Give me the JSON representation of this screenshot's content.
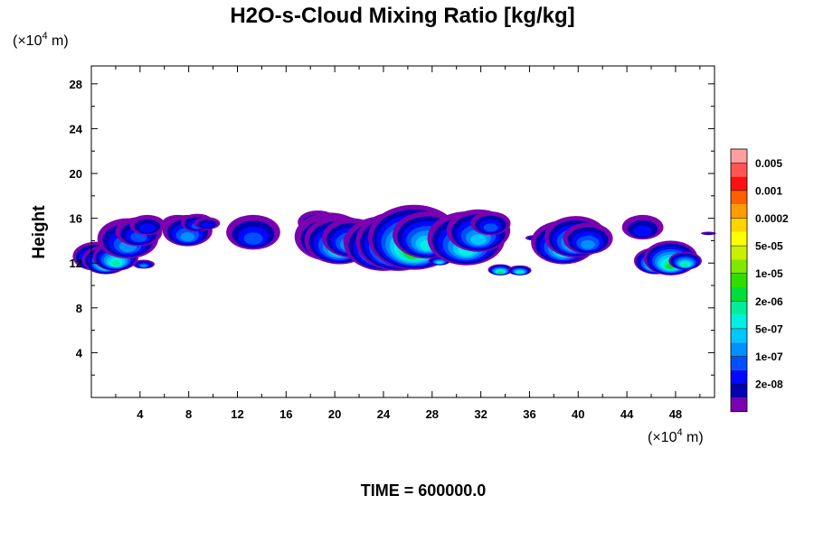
{
  "chart_data": {
    "type": "heatmap",
    "title": "H2O-s-Cloud Mixing Ratio [kg/kg]",
    "xlabel": "",
    "ylabel": "Height",
    "x_unit_text": "(×10⁴ m)",
    "y_unit_text": "(×10⁴ m)",
    "x_unit": {
      "prefix": "(×10",
      "exp": "4",
      "suffix": " m)"
    },
    "y_unit": {
      "prefix": "(×10",
      "exp": "4",
      "suffix": " m)"
    },
    "xlim": [
      0,
      51.2
    ],
    "ylim": [
      0,
      29.6
    ],
    "x_ticks": [
      4,
      8,
      12,
      16,
      20,
      24,
      28,
      32,
      36,
      40,
      44,
      48
    ],
    "y_ticks": [
      4,
      8,
      12,
      16,
      20,
      24,
      28
    ],
    "x_tick_labels": [
      "4",
      "8",
      "12",
      "16",
      "20",
      "24",
      "28",
      "32",
      "36",
      "40",
      "44",
      "48"
    ],
    "y_tick_labels": [
      "4",
      "8",
      "12",
      "16",
      "20",
      "24",
      "28"
    ],
    "time_label": "TIME = 600000.0",
    "colorbar": {
      "labels": [
        "0.005",
        "0.001",
        "0.0002",
        "5e-05",
        "1e-05",
        "2e-06",
        "5e-07",
        "1e-07",
        "2e-08"
      ],
      "colors_top_to_bottom": [
        "#ff9fa0",
        "#ff5555",
        "#ff1111",
        "#ff5f00",
        "#ff9c00",
        "#ffd400",
        "#ffff00",
        "#c8f000",
        "#7fe800",
        "#2fde00",
        "#00de3c",
        "#00ee9a",
        "#00f0e4",
        "#00c8ff",
        "#0090ff",
        "#0050ff",
        "#0008ff",
        "#0000b0",
        "#7a00b0"
      ]
    },
    "clouds": [
      {
        "x": 0.4,
        "base": 11.3,
        "top": 13.9,
        "max_level": 6
      },
      {
        "x": 1.2,
        "base": 11.0,
        "top": 13.6,
        "max_level": 7
      },
      {
        "x": 2.0,
        "base": 11.3,
        "top": 13.8,
        "max_level": 7
      },
      {
        "x": 3.0,
        "base": 12.4,
        "top": 16.0,
        "max_level": 4
      },
      {
        "x": 3.9,
        "base": 13.5,
        "top": 16.1,
        "max_level": 3
      },
      {
        "x": 4.6,
        "base": 14.5,
        "top": 16.3,
        "max_level": 2
      },
      {
        "x": 4.3,
        "base": 11.5,
        "top": 12.3,
        "max_level": 4
      },
      {
        "x": 7.1,
        "base": 14.8,
        "top": 16.3,
        "max_level": 2
      },
      {
        "x": 7.9,
        "base": 13.5,
        "top": 16.3,
        "max_level": 4
      },
      {
        "x": 8.7,
        "base": 14.8,
        "top": 16.4,
        "max_level": 3
      },
      {
        "x": 9.5,
        "base": 15.0,
        "top": 16.1,
        "max_level": 2
      },
      {
        "x": 13.3,
        "base": 13.2,
        "top": 16.3,
        "max_level": 3
      },
      {
        "x": 18.6,
        "base": 14.6,
        "top": 16.7,
        "max_level": 3
      },
      {
        "x": 19.6,
        "base": 12.2,
        "top": 16.5,
        "max_level": 4
      },
      {
        "x": 20.4,
        "base": 11.9,
        "top": 16.2,
        "max_level": 6
      },
      {
        "x": 21.4,
        "base": 12.5,
        "top": 16.0,
        "max_level": 5
      },
      {
        "x": 22.8,
        "base": 12.5,
        "top": 15.4,
        "max_level": 4
      },
      {
        "x": 24.0,
        "base": 11.3,
        "top": 16.2,
        "max_level": 7
      },
      {
        "x": 25.2,
        "base": 11.3,
        "top": 16.6,
        "max_level": 8
      },
      {
        "x": 26.5,
        "base": 11.4,
        "top": 17.2,
        "max_level": 9
      },
      {
        "x": 27.6,
        "base": 12.4,
        "top": 16.6,
        "max_level": 6
      },
      {
        "x": 28.6,
        "base": 11.8,
        "top": 12.6,
        "max_level": 6
      },
      {
        "x": 30.8,
        "base": 11.8,
        "top": 16.6,
        "max_level": 6
      },
      {
        "x": 31.8,
        "base": 13.0,
        "top": 16.8,
        "max_level": 5
      },
      {
        "x": 32.8,
        "base": 14.5,
        "top": 16.6,
        "max_level": 3
      },
      {
        "x": 33.6,
        "base": 10.9,
        "top": 11.9,
        "max_level": 8
      },
      {
        "x": 35.2,
        "base": 10.9,
        "top": 11.8,
        "max_level": 7
      },
      {
        "x": 36.4,
        "base": 14.0,
        "top": 14.5,
        "max_level": 2
      },
      {
        "x": 37.3,
        "base": 14.1,
        "top": 15.0,
        "max_level": 2
      },
      {
        "x": 38.8,
        "base": 11.9,
        "top": 15.8,
        "max_level": 6
      },
      {
        "x": 39.8,
        "base": 12.5,
        "top": 16.2,
        "max_level": 6
      },
      {
        "x": 40.8,
        "base": 12.8,
        "top": 15.6,
        "max_level": 4
      },
      {
        "x": 45.3,
        "base": 14.1,
        "top": 16.3,
        "max_level": 2
      },
      {
        "x": 46.4,
        "base": 11.0,
        "top": 13.4,
        "max_level": 8
      },
      {
        "x": 47.6,
        "base": 10.9,
        "top": 14.0,
        "max_level": 8
      },
      {
        "x": 48.8,
        "base": 11.4,
        "top": 13.0,
        "max_level": 7
      },
      {
        "x": 50.7,
        "base": 14.5,
        "top": 14.8,
        "max_level": 1
      }
    ]
  }
}
